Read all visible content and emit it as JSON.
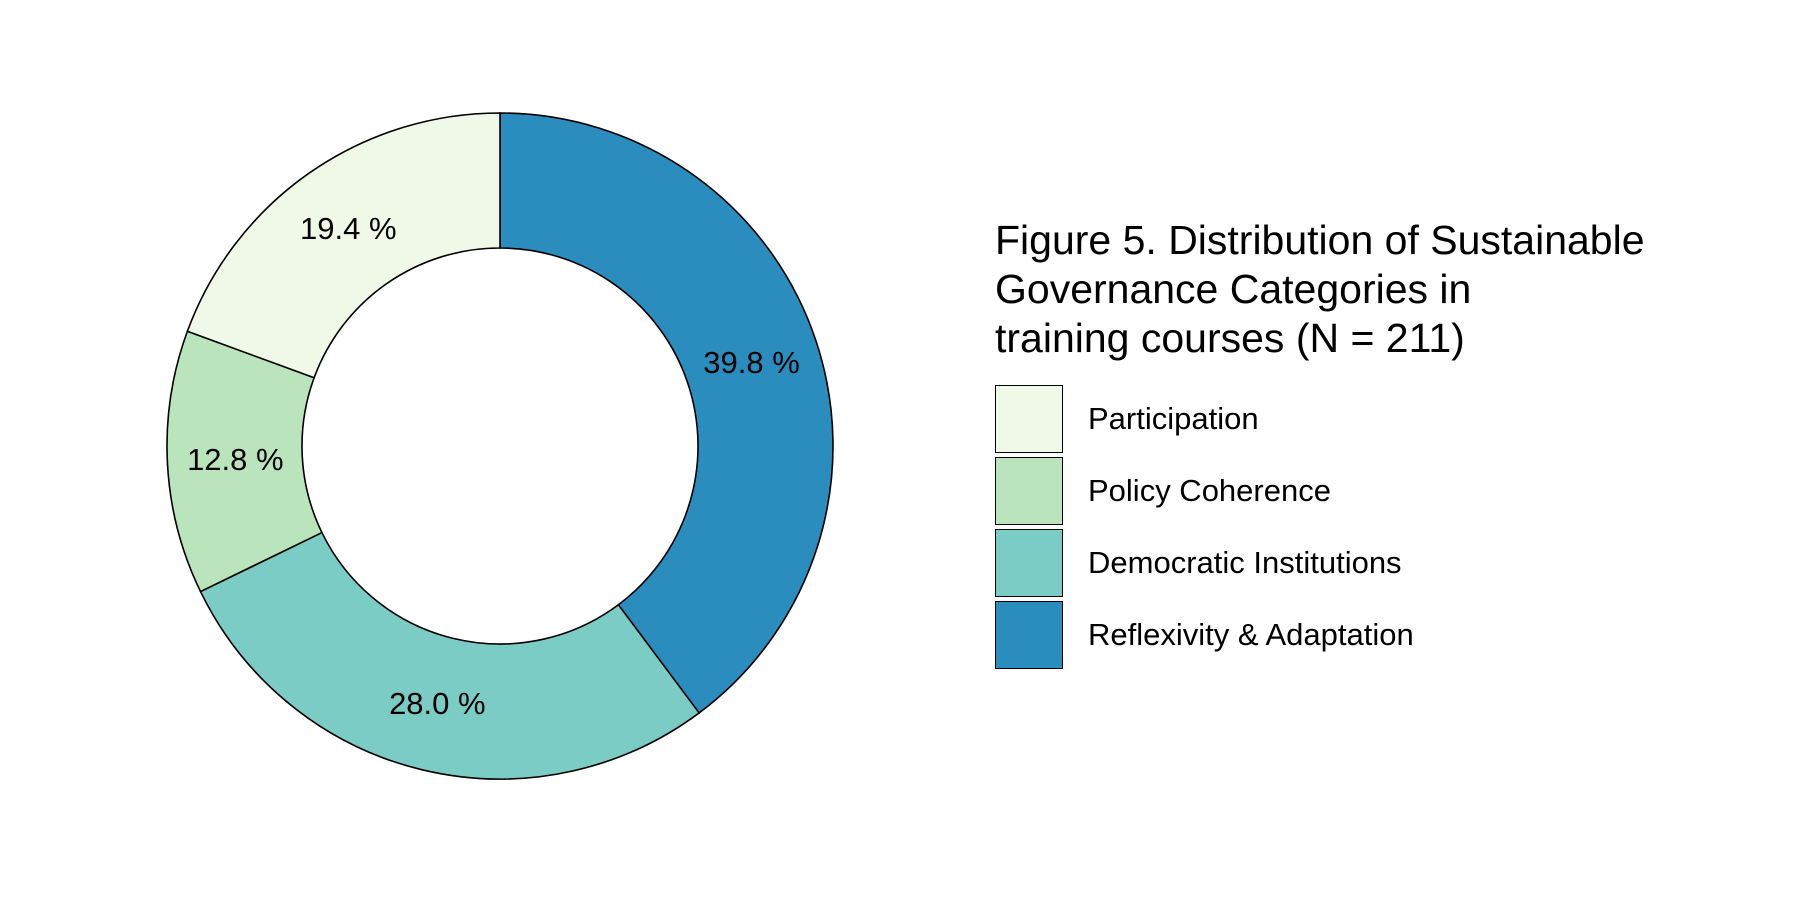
{
  "chart_data": {
    "type": "pie",
    "donut": true,
    "title": "Figure 5. Distribution of Sustainable\nGovernance Categories in\ntraining courses (N = 211)",
    "series": [
      {
        "name": "Reflexivity & Adaptation",
        "value": 39.8,
        "label": "39.8 %",
        "color": "#2b8cbe"
      },
      {
        "name": "Democratic Institutions",
        "value": 28.0,
        "label": "28.0 %",
        "color": "#7bccc4"
      },
      {
        "name": "Policy Coherence",
        "value": 12.8,
        "label": "12.8 %",
        "color": "#bae4bc"
      },
      {
        "name": "Participation",
        "value": 19.4,
        "label": "19.4 %",
        "color": "#f0f9e8"
      }
    ],
    "legend": {
      "position": "right",
      "order": [
        "Participation",
        "Policy Coherence",
        "Democratic Institutions",
        "Reflexivity & Adaptation"
      ]
    },
    "start": "12 o'clock",
    "direction": "clockwise"
  }
}
